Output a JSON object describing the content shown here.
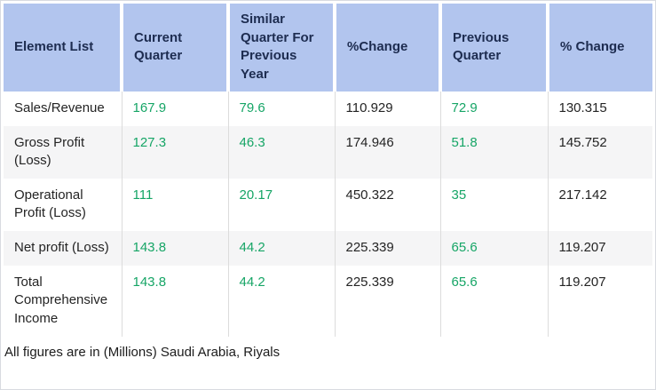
{
  "colors": {
    "header_background": "#b2c5ee",
    "header_text": "#1d2c50",
    "positive_value_green": "#16a566",
    "body_text": "#242424",
    "alternate_row_background": "#f5f5f6",
    "column_divider": "#dcdcdc",
    "outer_border": "#d8dbe0"
  },
  "table": {
    "columns": [
      {
        "key": "element-list",
        "label": "Element List"
      },
      {
        "key": "current-quarter",
        "label": "Current Quarter"
      },
      {
        "key": "similar-quarter-for-previous-year",
        "label": "Similar Quarter For Previous Year"
      },
      {
        "key": "pct-change-yoy",
        "label": "%Change"
      },
      {
        "key": "previous-quarter",
        "label": "Previous Quarter"
      },
      {
        "key": "pct-change-qoq",
        "label": "% Change"
      }
    ],
    "rows": [
      {
        "label": "Sales/Revenue",
        "current_quarter": "167.9",
        "similar_quarter_previous_year": "79.6",
        "pct_change_yoy": "110.929",
        "previous_quarter": "72.9",
        "pct_change_qoq": "130.315"
      },
      {
        "label": "Gross Profit (Loss)",
        "current_quarter": "127.3",
        "similar_quarter_previous_year": "46.3",
        "pct_change_yoy": "174.946",
        "previous_quarter": "51.8",
        "pct_change_qoq": "145.752"
      },
      {
        "label": "Operational Profit (Loss)",
        "current_quarter": "111",
        "similar_quarter_previous_year": "20.17",
        "pct_change_yoy": "450.322",
        "previous_quarter": "35",
        "pct_change_qoq": "217.142"
      },
      {
        "label": "Net profit (Loss)",
        "current_quarter": "143.8",
        "similar_quarter_previous_year": "44.2",
        "pct_change_yoy": "225.339",
        "previous_quarter": "65.6",
        "pct_change_qoq": "119.207"
      },
      {
        "label": "Total Comprehensive Income",
        "current_quarter": "143.8",
        "similar_quarter_previous_year": "44.2",
        "pct_change_yoy": "225.339",
        "previous_quarter": "65.6",
        "pct_change_qoq": "119.207"
      }
    ],
    "footnote": "All figures are in (Millions) Saudi Arabia, Riyals"
  },
  "chart_data": {
    "type": "table",
    "columns": [
      "Element List",
      "Current Quarter",
      "Similar Quarter For Previous Year",
      "%Change",
      "Previous Quarter",
      "% Change"
    ],
    "rows": [
      [
        "Sales/Revenue",
        167.9,
        79.6,
        110.929,
        72.9,
        130.315
      ],
      [
        "Gross Profit (Loss)",
        127.3,
        46.3,
        174.946,
        51.8,
        145.752
      ],
      [
        "Operational Profit (Loss)",
        111,
        20.17,
        450.322,
        35,
        217.142
      ],
      [
        "Net profit (Loss)",
        143.8,
        44.2,
        225.339,
        65.6,
        119.207
      ],
      [
        "Total Comprehensive Income",
        143.8,
        44.2,
        225.339,
        65.6,
        119.207
      ]
    ],
    "green_value_columns": [
      "Current Quarter",
      "Similar Quarter For Previous Year",
      "Previous Quarter"
    ],
    "dark_value_columns": [
      "%Change",
      "% Change"
    ],
    "footnote": "All figures are in (Millions) Saudi Arabia, Riyals"
  }
}
